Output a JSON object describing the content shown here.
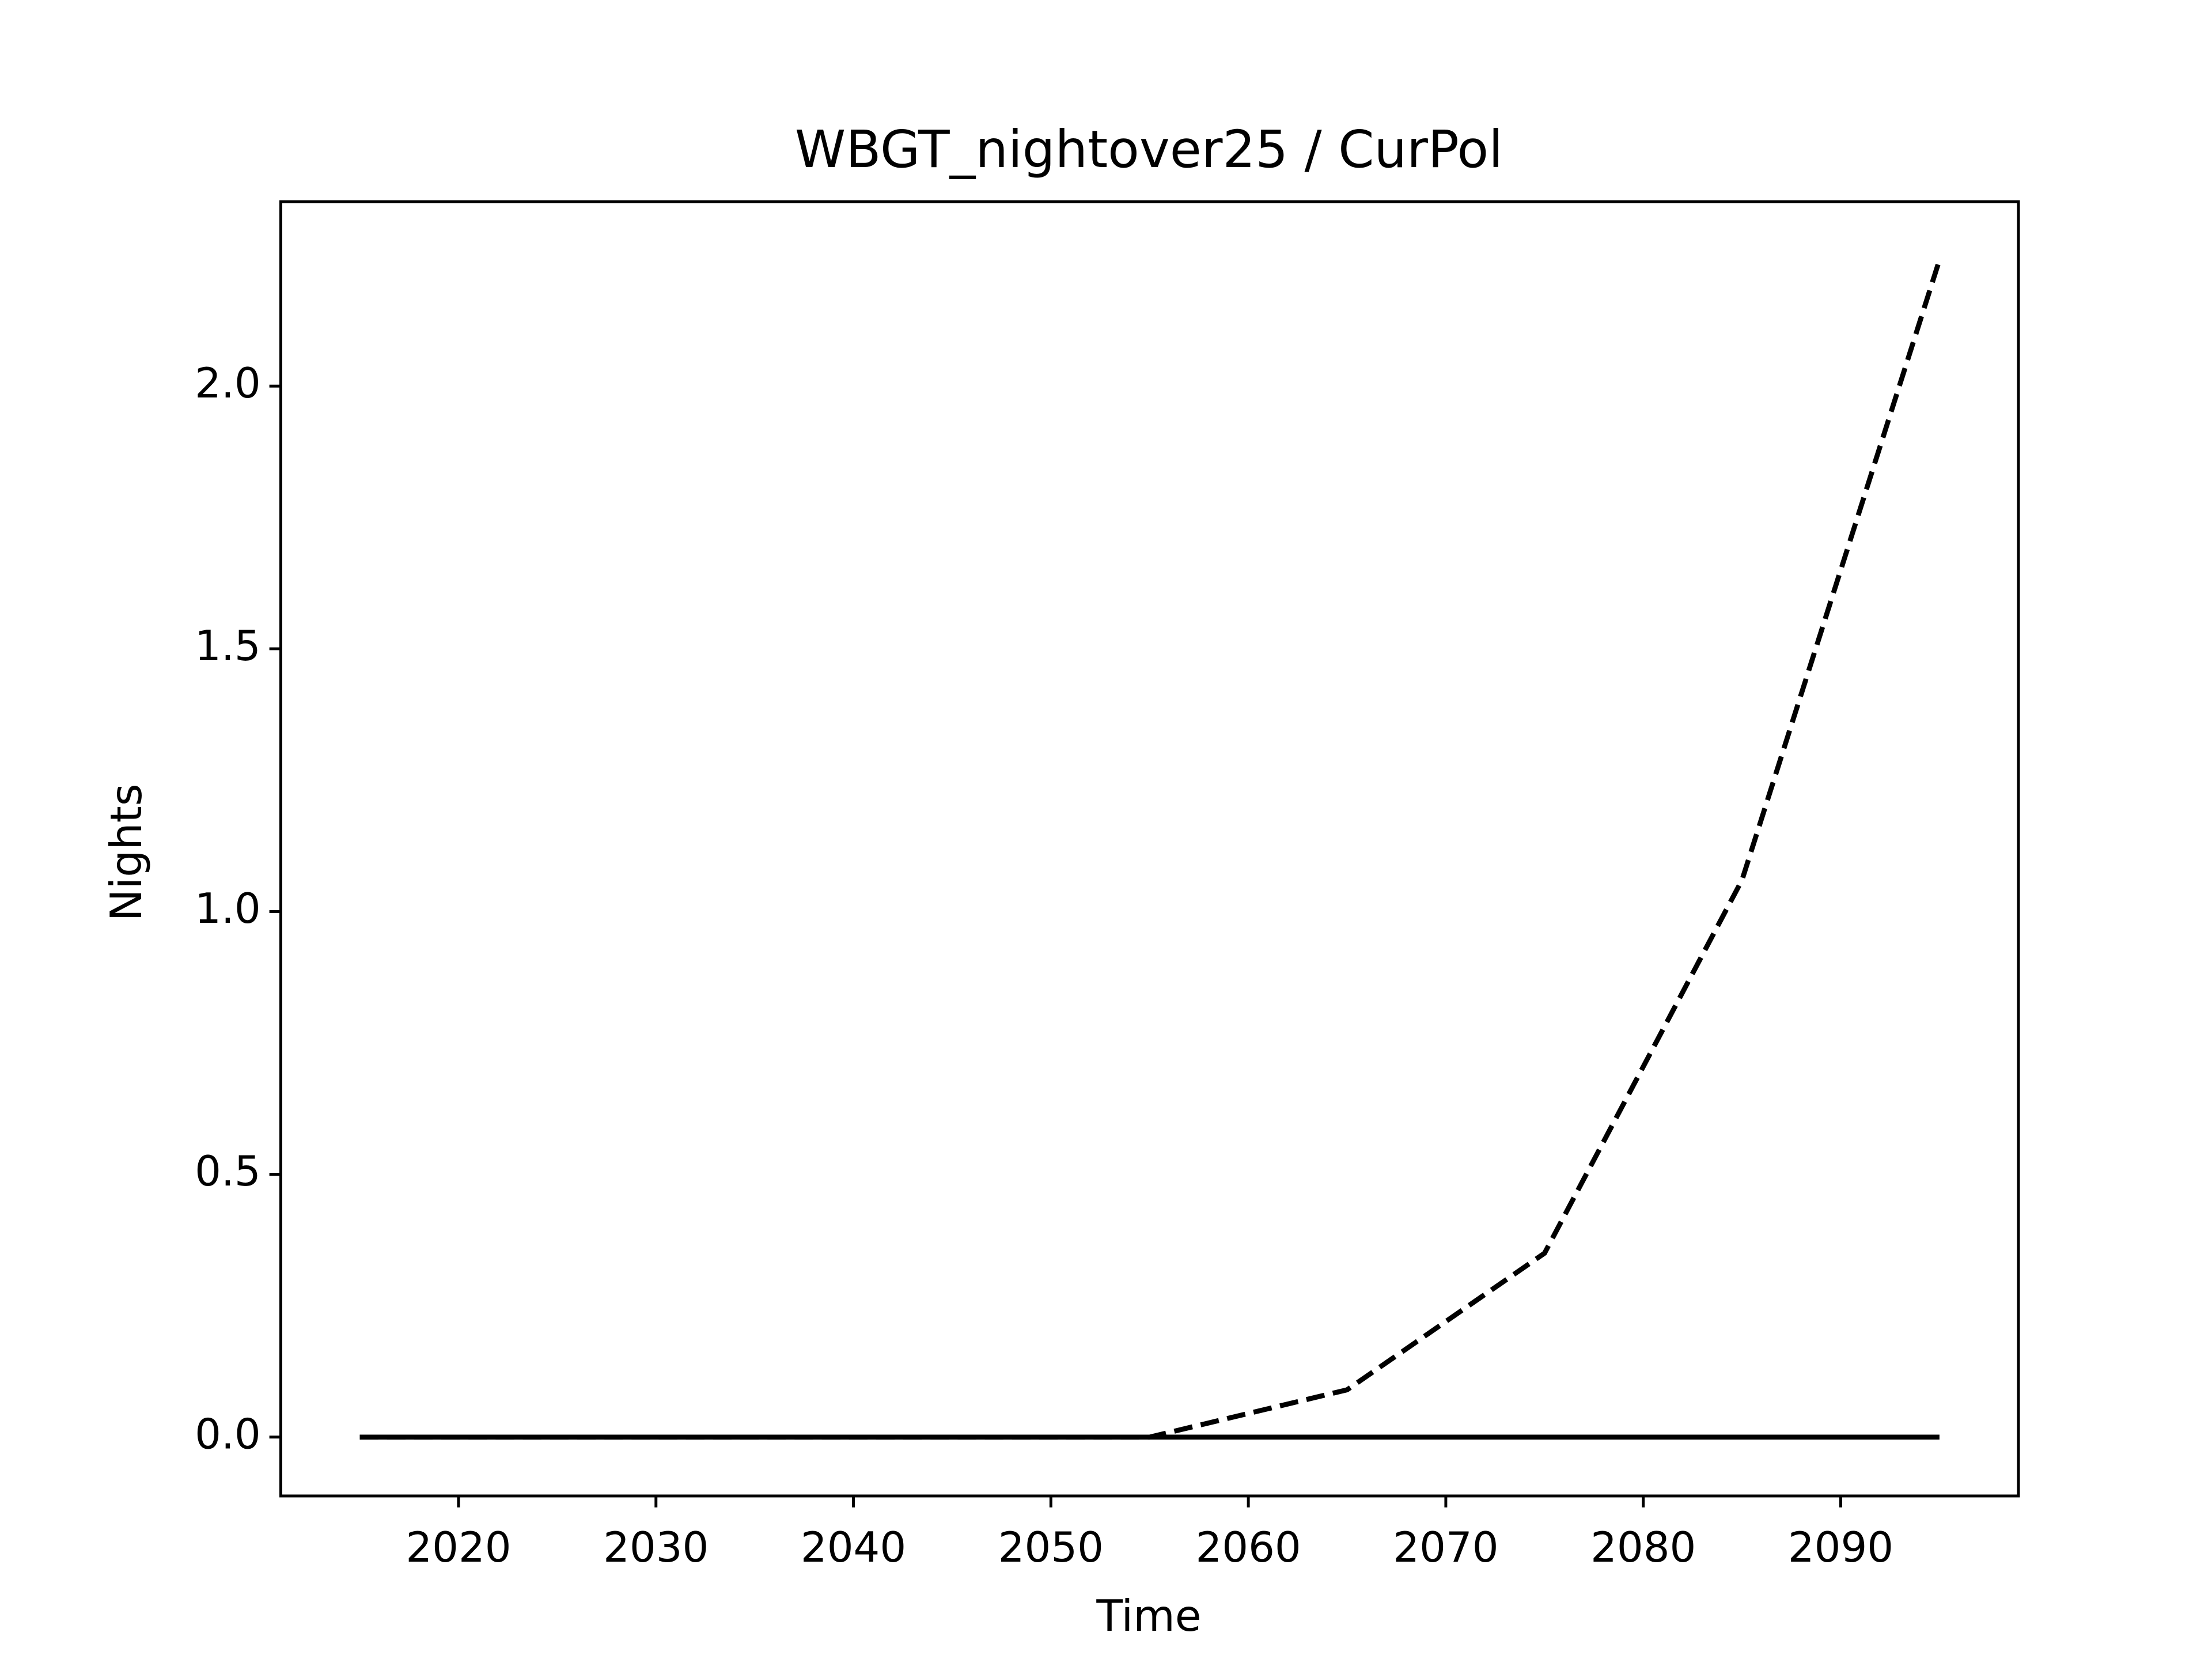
{
  "chart_data": {
    "type": "line",
    "title": "WBGT_nightover25 / CurPol",
    "x_label": "Time",
    "y_label": "Nights",
    "x": [
      2015,
      2025,
      2035,
      2045,
      2055,
      2065,
      2075,
      2085,
      2095
    ],
    "series": [
      {
        "color": "#000000",
        "linestyle": "dashed",
        "values": [
          0,
          0,
          0,
          0,
          0,
          0.09,
          0.35,
          1.06,
          2.24
        ]
      },
      {
        "color": "#000000",
        "linestyle": "solid",
        "values": [
          0,
          0,
          0,
          0,
          0,
          0,
          0,
          0,
          0
        ]
      }
    ],
    "xlim": [
      2011,
      2099
    ],
    "ylim": [
      -0.112,
      2.351
    ],
    "xticks": [
      2020,
      2030,
      2040,
      2050,
      2060,
      2070,
      2080,
      2090
    ],
    "yticks": [
      {
        "value": 0,
        "label": "0.0"
      },
      0.5,
      {
        "value": 1,
        "label": "1.0"
      },
      1.5,
      {
        "value": 2,
        "label": "2.0"
      }
    ],
    "grid": false
  }
}
